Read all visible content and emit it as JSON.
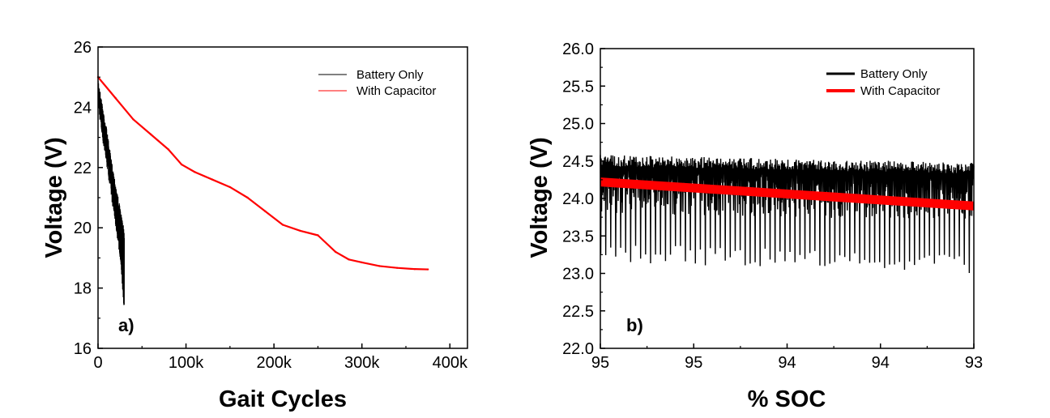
{
  "chart_data": [
    {
      "type": "line",
      "panel_label": "a)",
      "xlabel": "Gait Cycles",
      "ylabel": "Voltage (V)",
      "xlim": [
        0,
        420000
      ],
      "ylim": [
        16,
        26
      ],
      "x_ticks": [
        0,
        100000,
        200000,
        300000,
        400000
      ],
      "x_tick_labels": [
        "0",
        "100k",
        "200k",
        "300k",
        "400k"
      ],
      "y_ticks": [
        16,
        18,
        20,
        22,
        24,
        26
      ],
      "y_tick_labels": [
        "16",
        "18",
        "20",
        "22",
        "24",
        "26"
      ],
      "legend_position": "top-right",
      "series": [
        {
          "name": "Battery Only",
          "color": "#000000",
          "style": "noisy-band",
          "x": [
            0,
            5000,
            10000,
            15000,
            20000,
            25000,
            30000
          ],
          "y_upper": [
            25.0,
            24.1,
            23.3,
            22.3,
            21.5,
            20.7,
            19.9
          ],
          "y_lower": [
            24.0,
            22.9,
            22.0,
            21.0,
            20.0,
            19.0,
            17.1
          ]
        },
        {
          "name": "With Capacitor",
          "color": "#ff0000",
          "style": "line",
          "x": [
            0,
            20000,
            40000,
            60000,
            80000,
            95000,
            110000,
            130000,
            150000,
            170000,
            190000,
            210000,
            230000,
            250000,
            270000,
            285000,
            300000,
            320000,
            340000,
            360000,
            375000
          ],
          "y": [
            25.0,
            24.3,
            23.6,
            23.1,
            22.6,
            22.1,
            21.85,
            21.6,
            21.35,
            21.0,
            20.55,
            20.1,
            19.9,
            19.75,
            19.2,
            18.95,
            18.85,
            18.73,
            18.67,
            18.63,
            18.62
          ]
        }
      ]
    },
    {
      "type": "line",
      "panel_label": "b)",
      "xlabel": "% SOC",
      "ylabel": "Voltage (V)",
      "xlim": [
        95,
        93
      ],
      "ylim": [
        22.0,
        26.0
      ],
      "x_tick_labels": [
        "95",
        "95",
        "94",
        "94",
        "93"
      ],
      "y_ticks": [
        22.0,
        22.5,
        23.0,
        23.5,
        24.0,
        24.5,
        25.0,
        25.5,
        26.0
      ],
      "y_tick_labels": [
        "22.0",
        "22.5",
        "23.0",
        "23.5",
        "24.0",
        "24.5",
        "25.0",
        "25.5",
        "26.0"
      ],
      "legend_position": "top-right",
      "series": [
        {
          "name": "Battery Only",
          "color": "#000000",
          "style": "noisy-band",
          "x": [
            95.0,
            93.0
          ],
          "y_upper": [
            24.58,
            24.48
          ],
          "y_lower": [
            23.4,
            23.3
          ],
          "dip_min": [
            23.15,
            23.0
          ]
        },
        {
          "name": "With Capacitor",
          "color": "#ff0000",
          "style": "thick-line",
          "x": [
            95.0,
            93.0
          ],
          "y": [
            24.22,
            23.9
          ]
        }
      ]
    }
  ]
}
